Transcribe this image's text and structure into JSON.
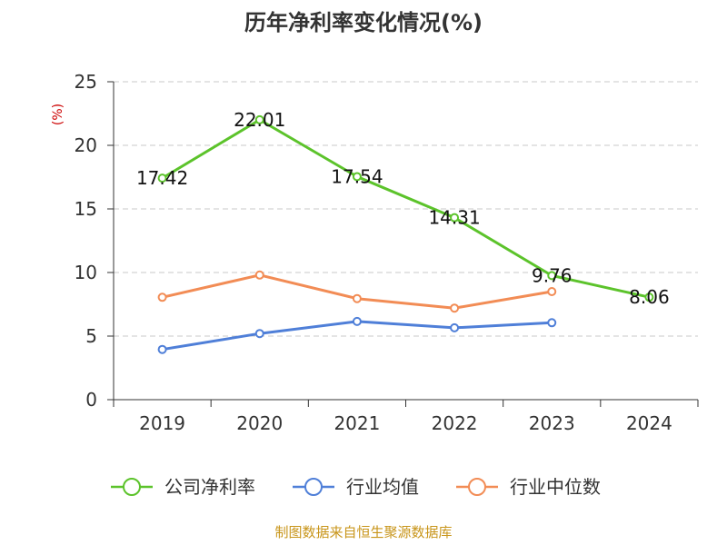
{
  "chart_data": {
    "type": "line",
    "title": "历年净利率变化情况(%)",
    "ylabel": "(%)",
    "xlabel": "",
    "categories": [
      "2019",
      "2020",
      "2021",
      "2022",
      "2023",
      "2024"
    ],
    "ylim": [
      0,
      25
    ],
    "yticks": [
      0,
      5,
      10,
      15,
      20,
      25
    ],
    "grid": true,
    "legend_position": "bottom",
    "series": [
      {
        "name": "公司净利率",
        "color": "#5cc32b",
        "values": [
          17.42,
          22.01,
          17.54,
          14.31,
          9.76,
          8.06
        ],
        "labels": [
          "17.42",
          "22.01",
          "17.54",
          "14.31",
          "9.76",
          "8.06"
        ],
        "show_labels": true
      },
      {
        "name": "行业均值",
        "color": "#4f7fd8",
        "values": [
          3.95,
          5.2,
          6.15,
          5.65,
          6.05,
          null
        ],
        "show_labels": false
      },
      {
        "name": "行业中位数",
        "color": "#f28c55",
        "values": [
          8.05,
          9.8,
          7.95,
          7.2,
          8.5,
          null
        ],
        "show_labels": false
      }
    ]
  },
  "source_text": "制图数据来自恒生聚源数据库"
}
